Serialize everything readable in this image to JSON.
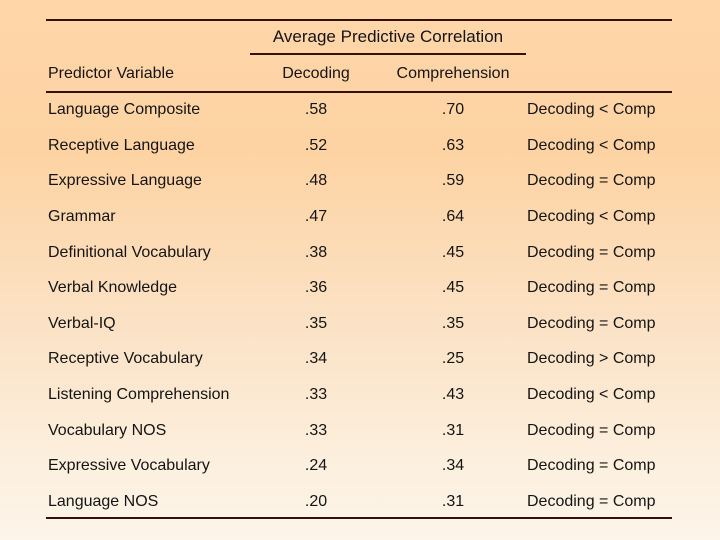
{
  "slide": {
    "background_top_color": "#fdd4a6",
    "background_bottom_color": "#fdf5ea",
    "rule_color": "#34120c",
    "text_color": "#141414"
  },
  "table": {
    "spanner": "Average Predictive Correlation",
    "columns": {
      "predictor": "Predictor Variable",
      "decoding": "Decoding",
      "comprehension": "Comprehension"
    },
    "rows": [
      {
        "predictor": "Language Composite",
        "decoding": ".58",
        "comprehension": ".70",
        "comparison": "Decoding < Comp"
      },
      {
        "predictor": "Receptive Language",
        "decoding": ".52",
        "comprehension": ".63",
        "comparison": "Decoding < Comp"
      },
      {
        "predictor": "Expressive Language",
        "decoding": ".48",
        "comprehension": ".59",
        "comparison": "Decoding = Comp"
      },
      {
        "predictor": "Grammar",
        "decoding": ".47",
        "comprehension": ".64",
        "comparison": "Decoding < Comp"
      },
      {
        "predictor": "Definitional Vocabulary",
        "decoding": ".38",
        "comprehension": ".45",
        "comparison": "Decoding = Comp"
      },
      {
        "predictor": "Verbal Knowledge",
        "decoding": ".36",
        "comprehension": ".45",
        "comparison": "Decoding = Comp"
      },
      {
        "predictor": "Verbal-IQ",
        "decoding": ".35",
        "comprehension": ".35",
        "comparison": "Decoding = Comp"
      },
      {
        "predictor": "Receptive Vocabulary",
        "decoding": ".34",
        "comprehension": ".25",
        "comparison": "Decoding > Comp"
      },
      {
        "predictor": "Listening Comprehension",
        "decoding": ".33",
        "comprehension": ".43",
        "comparison": "Decoding < Comp"
      },
      {
        "predictor": "Vocabulary NOS",
        "decoding": ".33",
        "comprehension": ".31",
        "comparison": "Decoding = Comp"
      },
      {
        "predictor": "Expressive Vocabulary",
        "decoding": ".24",
        "comprehension": ".34",
        "comparison": "Decoding = Comp"
      },
      {
        "predictor": "Language NOS",
        "decoding": ".20",
        "comprehension": ".31",
        "comparison": "Decoding = Comp"
      }
    ]
  },
  "chart_data": {
    "type": "table",
    "title": "Average Predictive Correlation",
    "columns": [
      "Predictor Variable",
      "Decoding",
      "Comprehension",
      "Comparison"
    ],
    "categories": [
      "Language Composite",
      "Receptive Language",
      "Expressive Language",
      "Grammar",
      "Definitional Vocabulary",
      "Verbal Knowledge",
      "Verbal-IQ",
      "Receptive Vocabulary",
      "Listening Comprehension",
      "Vocabulary NOS",
      "Expressive Vocabulary",
      "Language NOS"
    ],
    "series": [
      {
        "name": "Decoding",
        "values": [
          0.58,
          0.52,
          0.48,
          0.47,
          0.38,
          0.36,
          0.35,
          0.34,
          0.33,
          0.33,
          0.24,
          0.2
        ]
      },
      {
        "name": "Comprehension",
        "values": [
          0.7,
          0.63,
          0.59,
          0.64,
          0.45,
          0.45,
          0.35,
          0.25,
          0.43,
          0.31,
          0.34,
          0.31
        ]
      }
    ],
    "comparisons": [
      "Decoding < Comp",
      "Decoding < Comp",
      "Decoding = Comp",
      "Decoding < Comp",
      "Decoding = Comp",
      "Decoding = Comp",
      "Decoding = Comp",
      "Decoding > Comp",
      "Decoding < Comp",
      "Decoding = Comp",
      "Decoding = Comp",
      "Decoding = Comp"
    ]
  }
}
